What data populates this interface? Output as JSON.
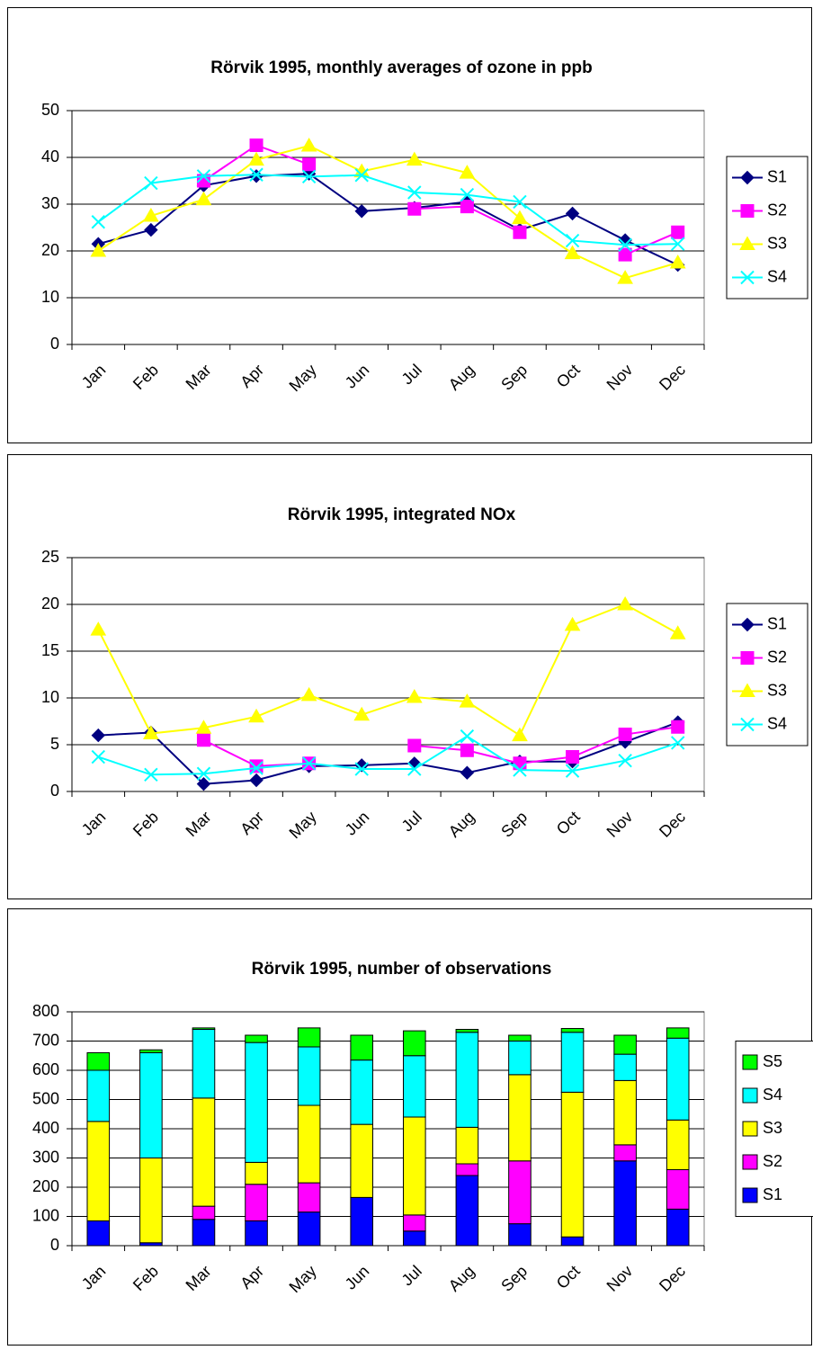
{
  "chart_data": [
    {
      "type": "line",
      "title": "Rörvik 1995, monthly averages of ozone in ppb",
      "categories": [
        "Jan",
        "Feb",
        "Mar",
        "Apr",
        "May",
        "Jun",
        "Jul",
        "Aug",
        "Sep",
        "Oct",
        "Nov",
        "Dec"
      ],
      "ylim": [
        0,
        50
      ],
      "yticks": [
        0,
        10,
        20,
        30,
        40,
        50
      ],
      "grid": true,
      "legend": "right",
      "series": [
        {
          "name": "S1",
          "color": "#000080",
          "marker": "diamond",
          "values": [
            21.5,
            24.5,
            34,
            36,
            36.5,
            28.5,
            29.2,
            30.5,
            24.5,
            28,
            22.3,
            17
          ]
        },
        {
          "name": "S2",
          "color": "#ff00ff",
          "marker": "square",
          "values": [
            null,
            null,
            35,
            42.6,
            38.5,
            null,
            29,
            29.5,
            24,
            null,
            19.2,
            24
          ]
        },
        {
          "name": "S3",
          "color": "#ffff00",
          "marker": "triangle",
          "values": [
            20,
            27.5,
            31,
            39.5,
            42.5,
            37,
            39.5,
            36.7,
            27,
            19.5,
            14.2,
            17.5
          ]
        },
        {
          "name": "S4",
          "color": "#00ffff",
          "marker": "x",
          "values": [
            26.2,
            34.5,
            36,
            36.3,
            35.9,
            36.2,
            32.5,
            32,
            30.5,
            22.2,
            21.3,
            21.5
          ]
        }
      ]
    },
    {
      "type": "line",
      "title": "Rörvik 1995, integrated NOx",
      "categories": [
        "Jan",
        "Feb",
        "Mar",
        "Apr",
        "May",
        "Jun",
        "Jul",
        "Aug",
        "Sep",
        "Oct",
        "Nov",
        "Dec"
      ],
      "ylim": [
        0,
        25
      ],
      "yticks": [
        0,
        5,
        10,
        15,
        20,
        25
      ],
      "grid": true,
      "legend": "right",
      "series": [
        {
          "name": "S1",
          "color": "#000080",
          "marker": "diamond",
          "values": [
            6,
            6.3,
            0.8,
            1.2,
            2.7,
            2.8,
            3,
            2,
            3.2,
            3.2,
            5.3,
            7.4
          ]
        },
        {
          "name": "S2",
          "color": "#ff00ff",
          "marker": "square",
          "values": [
            null,
            null,
            5.5,
            2.7,
            3,
            null,
            4.9,
            4.4,
            3,
            3.7,
            6.1,
            6.9
          ]
        },
        {
          "name": "S3",
          "color": "#ffff00",
          "marker": "triangle",
          "values": [
            17.3,
            6.2,
            6.8,
            8,
            10.3,
            8.2,
            10.1,
            9.6,
            6,
            17.8,
            20,
            16.9
          ]
        },
        {
          "name": "S4",
          "color": "#00ffff",
          "marker": "x",
          "values": [
            3.7,
            1.8,
            1.9,
            2.5,
            3,
            2.4,
            2.4,
            5.9,
            2.3,
            2.2,
            3.3,
            5.2
          ]
        }
      ]
    },
    {
      "type": "bar",
      "stacked": true,
      "title": "Rörvik 1995, number of observations",
      "categories": [
        "Jan",
        "Feb",
        "Mar",
        "Apr",
        "May",
        "Jun",
        "Jul",
        "Aug",
        "Sep",
        "Oct",
        "Nov",
        "Dec"
      ],
      "ylim": [
        0,
        800
      ],
      "yticks": [
        0,
        100,
        200,
        300,
        400,
        500,
        600,
        700,
        800
      ],
      "grid": true,
      "legend": "right",
      "series": [
        {
          "name": "S1",
          "color": "#0000ff",
          "values": [
            85,
            10,
            90,
            85,
            115,
            165,
            50,
            240,
            75,
            30,
            290,
            125
          ]
        },
        {
          "name": "S2",
          "color": "#ff00ff",
          "values": [
            0,
            0,
            45,
            125,
            100,
            0,
            55,
            40,
            215,
            0,
            55,
            135
          ]
        },
        {
          "name": "S3",
          "color": "#ffff00",
          "values": [
            340,
            290,
            370,
            75,
            265,
            250,
            335,
            125,
            295,
            495,
            220,
            170
          ]
        },
        {
          "name": "S4",
          "color": "#00ffff",
          "values": [
            175,
            360,
            235,
            410,
            200,
            220,
            210,
            325,
            115,
            205,
            90,
            280
          ]
        },
        {
          "name": "S5",
          "color": "#00ff00",
          "values": [
            60,
            10,
            5,
            25,
            65,
            85,
            85,
            10,
            20,
            13,
            65,
            35
          ]
        }
      ]
    }
  ]
}
